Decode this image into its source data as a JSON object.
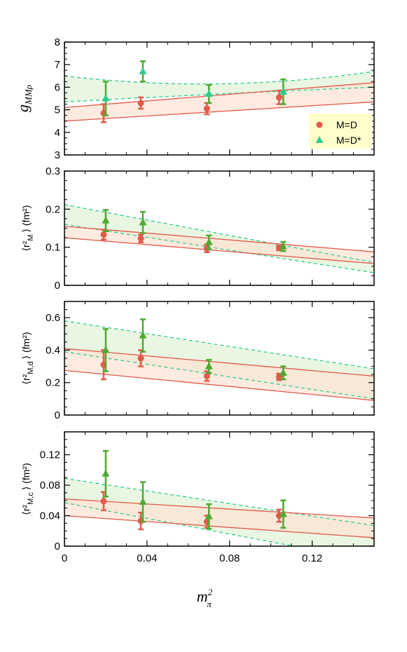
{
  "figure": {
    "xlabel": "m",
    "xlabel_sup": "2",
    "xlabel_sub": "π",
    "legend": {
      "bg_color": "#ffffcc",
      "entries": [
        {
          "label": "M=D",
          "marker": "circle",
          "color": "#e05a4a"
        },
        {
          "label": "M=D*",
          "marker": "triangle",
          "color": "#2dcc8a"
        }
      ]
    },
    "colors": {
      "red": "#e05a4a",
      "red_fill": "#fde3d3",
      "green_line": "#2dcc8a",
      "green_fill": "#e8f5e0",
      "green_err": "#4fa832",
      "overlap_fill": "#ece8d4"
    }
  },
  "chart_data": [
    {
      "type": "scatter",
      "ylabel": "g",
      "ylabel_sub": "MMρ",
      "ylim": [
        3,
        8
      ],
      "yticks": [
        "3",
        "4",
        "5",
        "6",
        "7",
        "8"
      ],
      "xlim": [
        0,
        0.15
      ],
      "xticks": [
        "0",
        "0.04",
        "0.08",
        "0.12"
      ],
      "series": [
        {
          "name": "M=D",
          "x": [
            0.019,
            0.037,
            0.069,
            0.104
          ],
          "y": [
            4.85,
            5.3,
            5.05,
            5.55
          ],
          "err": [
            0.4,
            0.25,
            0.25,
            0.3
          ]
        },
        {
          "name": "M=D*",
          "x": [
            0.02,
            0.038,
            0.07,
            0.106
          ],
          "y": [
            5.5,
            6.7,
            5.7,
            5.8
          ],
          "err": [
            0.75,
            0.45,
            0.4,
            0.55
          ]
        }
      ],
      "bands": [
        {
          "series": "M=D",
          "upper": [
            5.1,
            6.2
          ],
          "lower": [
            4.5,
            5.35
          ]
        },
        {
          "series": "M=D*",
          "upper": [
            6.5,
            6.7
          ],
          "lower": [
            5.35,
            6.0
          ],
          "mid_upper": 6.15,
          "mid_lower": 5.7
        }
      ]
    },
    {
      "type": "scatter",
      "ylabel": "⟨r²",
      "ylabel_sub": "M",
      "ylabel_tail": "⟩ (fm²)",
      "ylim": [
        0,
        0.3
      ],
      "yticks": [
        "0",
        "0.1",
        "0.2",
        "0.3"
      ],
      "xlim": [
        0,
        0.15
      ],
      "xticks": [
        "0",
        "0.04",
        "0.08",
        "0.12"
      ],
      "series": [
        {
          "name": "M=D",
          "x": [
            0.019,
            0.037,
            0.069,
            0.104
          ],
          "y": [
            0.133,
            0.123,
            0.097,
            0.098
          ],
          "err": [
            0.013,
            0.01,
            0.01,
            0.006
          ]
        },
        {
          "name": "M=D*",
          "x": [
            0.02,
            0.038,
            0.07,
            0.106
          ],
          "y": [
            0.17,
            0.165,
            0.113,
            0.102
          ],
          "err": [
            0.028,
            0.028,
            0.018,
            0.012
          ]
        }
      ],
      "bands": [
        {
          "series": "M=D",
          "upper": [
            0.155,
            0.088
          ],
          "lower": [
            0.125,
            0.057
          ]
        },
        {
          "series": "M=D*",
          "upper": [
            0.212,
            0.06
          ],
          "lower": [
            0.16,
            0.033
          ]
        }
      ]
    },
    {
      "type": "scatter",
      "ylabel": "⟨r²",
      "ylabel_sub": "M,d",
      "ylabel_tail": "⟩ (fm²)",
      "ylim": [
        0,
        0.7
      ],
      "yticks": [
        "0",
        "0.2",
        "0.4",
        "0.6"
      ],
      "xlim": [
        0,
        0.15
      ],
      "xticks": [
        "0",
        "0.04",
        "0.08",
        "0.12"
      ],
      "series": [
        {
          "name": "M=D",
          "x": [
            0.019,
            0.037,
            0.069,
            0.104
          ],
          "y": [
            0.31,
            0.35,
            0.24,
            0.235
          ],
          "err": [
            0.09,
            0.05,
            0.03,
            0.02
          ]
        },
        {
          "name": "M=D*",
          "x": [
            0.02,
            0.038,
            0.07,
            0.106
          ],
          "y": [
            0.4,
            0.49,
            0.3,
            0.26
          ],
          "err": [
            0.13,
            0.1,
            0.04,
            0.04
          ]
        }
      ],
      "bands": [
        {
          "series": "M=D",
          "upper": [
            0.41,
            0.24
          ],
          "lower": [
            0.275,
            0.09
          ]
        },
        {
          "series": "M=D*",
          "upper": [
            0.58,
            0.285
          ],
          "lower": [
            0.39,
            0.1
          ]
        }
      ]
    },
    {
      "type": "scatter",
      "ylabel": "⟨r²",
      "ylabel_sub": "M,c",
      "ylabel_tail": "⟩ (fm²)",
      "ylim": [
        0,
        0.15
      ],
      "yticks": [
        "0",
        "0.04",
        "0.08",
        "0.12"
      ],
      "xlim": [
        0,
        0.15
      ],
      "xticks": [
        "0",
        "0.04",
        "0.08",
        "0.12"
      ],
      "series": [
        {
          "name": "M=D",
          "x": [
            0.019,
            0.037,
            0.069,
            0.104
          ],
          "y": [
            0.059,
            0.033,
            0.032,
            0.04
          ],
          "err": [
            0.012,
            0.011,
            0.008,
            0.008
          ]
        },
        {
          "name": "M=D*",
          "x": [
            0.02,
            0.038,
            0.07,
            0.106
          ],
          "y": [
            0.095,
            0.058,
            0.039,
            0.042
          ],
          "err": [
            0.03,
            0.026,
            0.016,
            0.018
          ]
        }
      ],
      "bands": [
        {
          "series": "M=D",
          "upper": [
            0.062,
            0.037
          ],
          "lower": [
            0.04,
            0.011
          ]
        },
        {
          "series": "M=D*",
          "upper": [
            0.089,
            0.027
          ],
          "lower": [
            0.057,
            -0.02
          ]
        }
      ]
    }
  ]
}
